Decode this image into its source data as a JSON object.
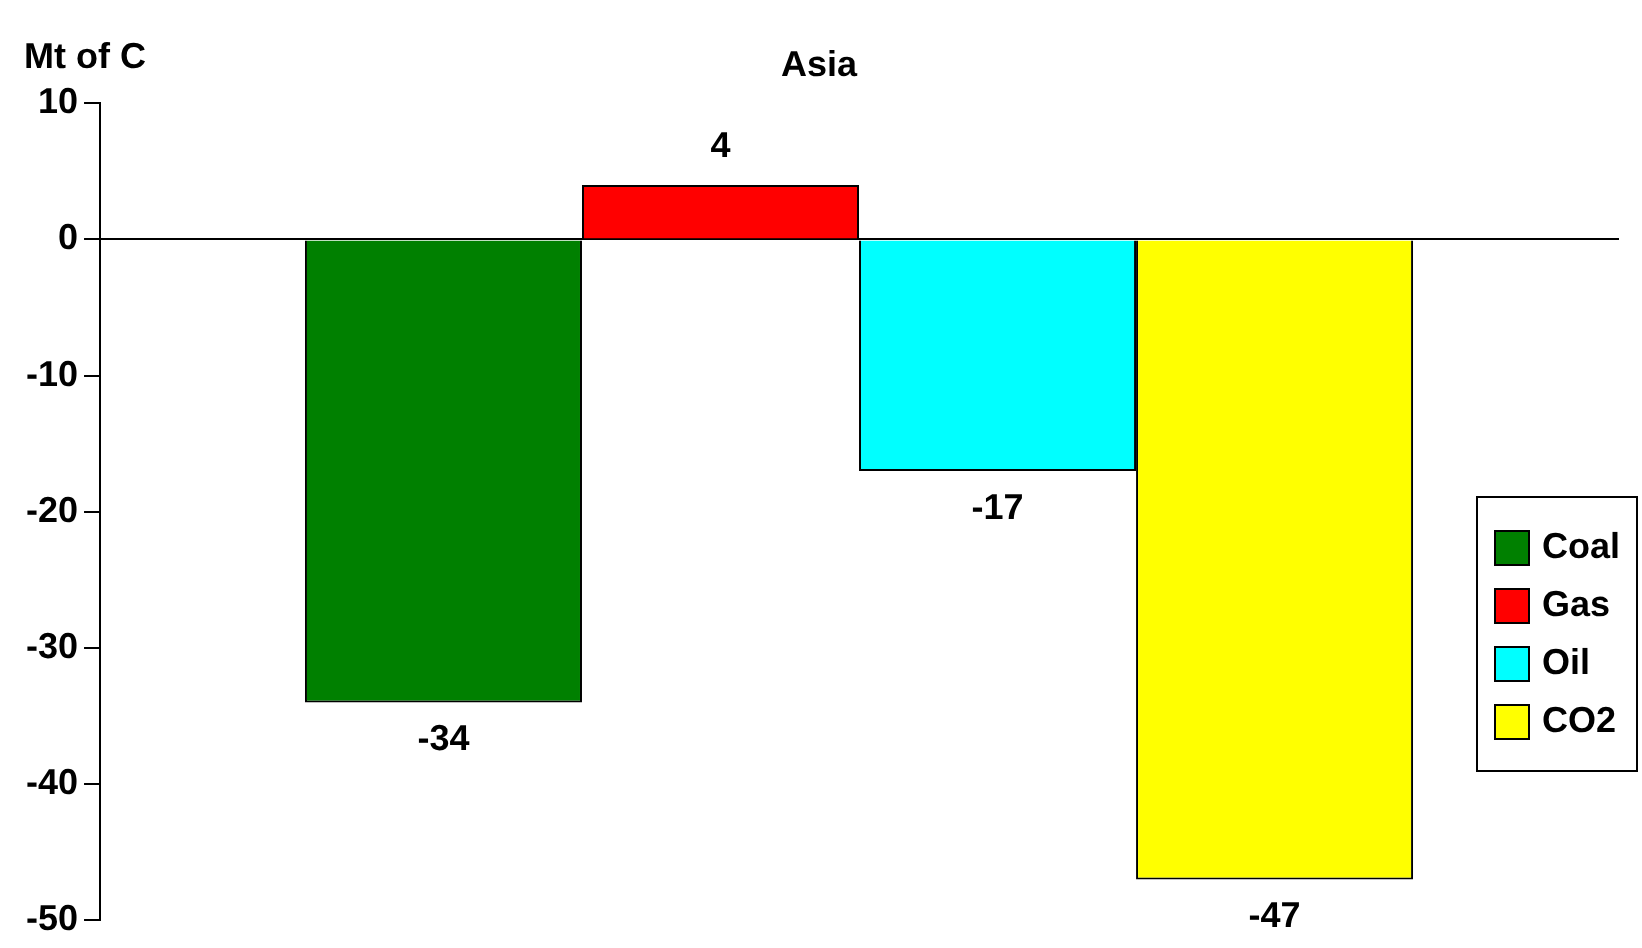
{
  "chart_data": {
    "type": "bar",
    "title": "Asia",
    "ylabel": "Mt of C",
    "categories": [
      null
    ],
    "series": [
      {
        "name": "Coal",
        "color": "#008000",
        "values": [
          -34
        ]
      },
      {
        "name": "Gas",
        "color": "#ff0000",
        "values": [
          4
        ]
      },
      {
        "name": "Oil",
        "color": "#00ffff",
        "values": [
          -17
        ]
      },
      {
        "name": "CO2",
        "color": "#ffff00",
        "values": [
          -47
        ]
      }
    ],
    "ylim": [
      -50,
      10
    ],
    "yticks": [
      -50,
      -40,
      -30,
      -20,
      -10,
      0,
      10
    ],
    "data_labels": true,
    "legend": "right"
  }
}
